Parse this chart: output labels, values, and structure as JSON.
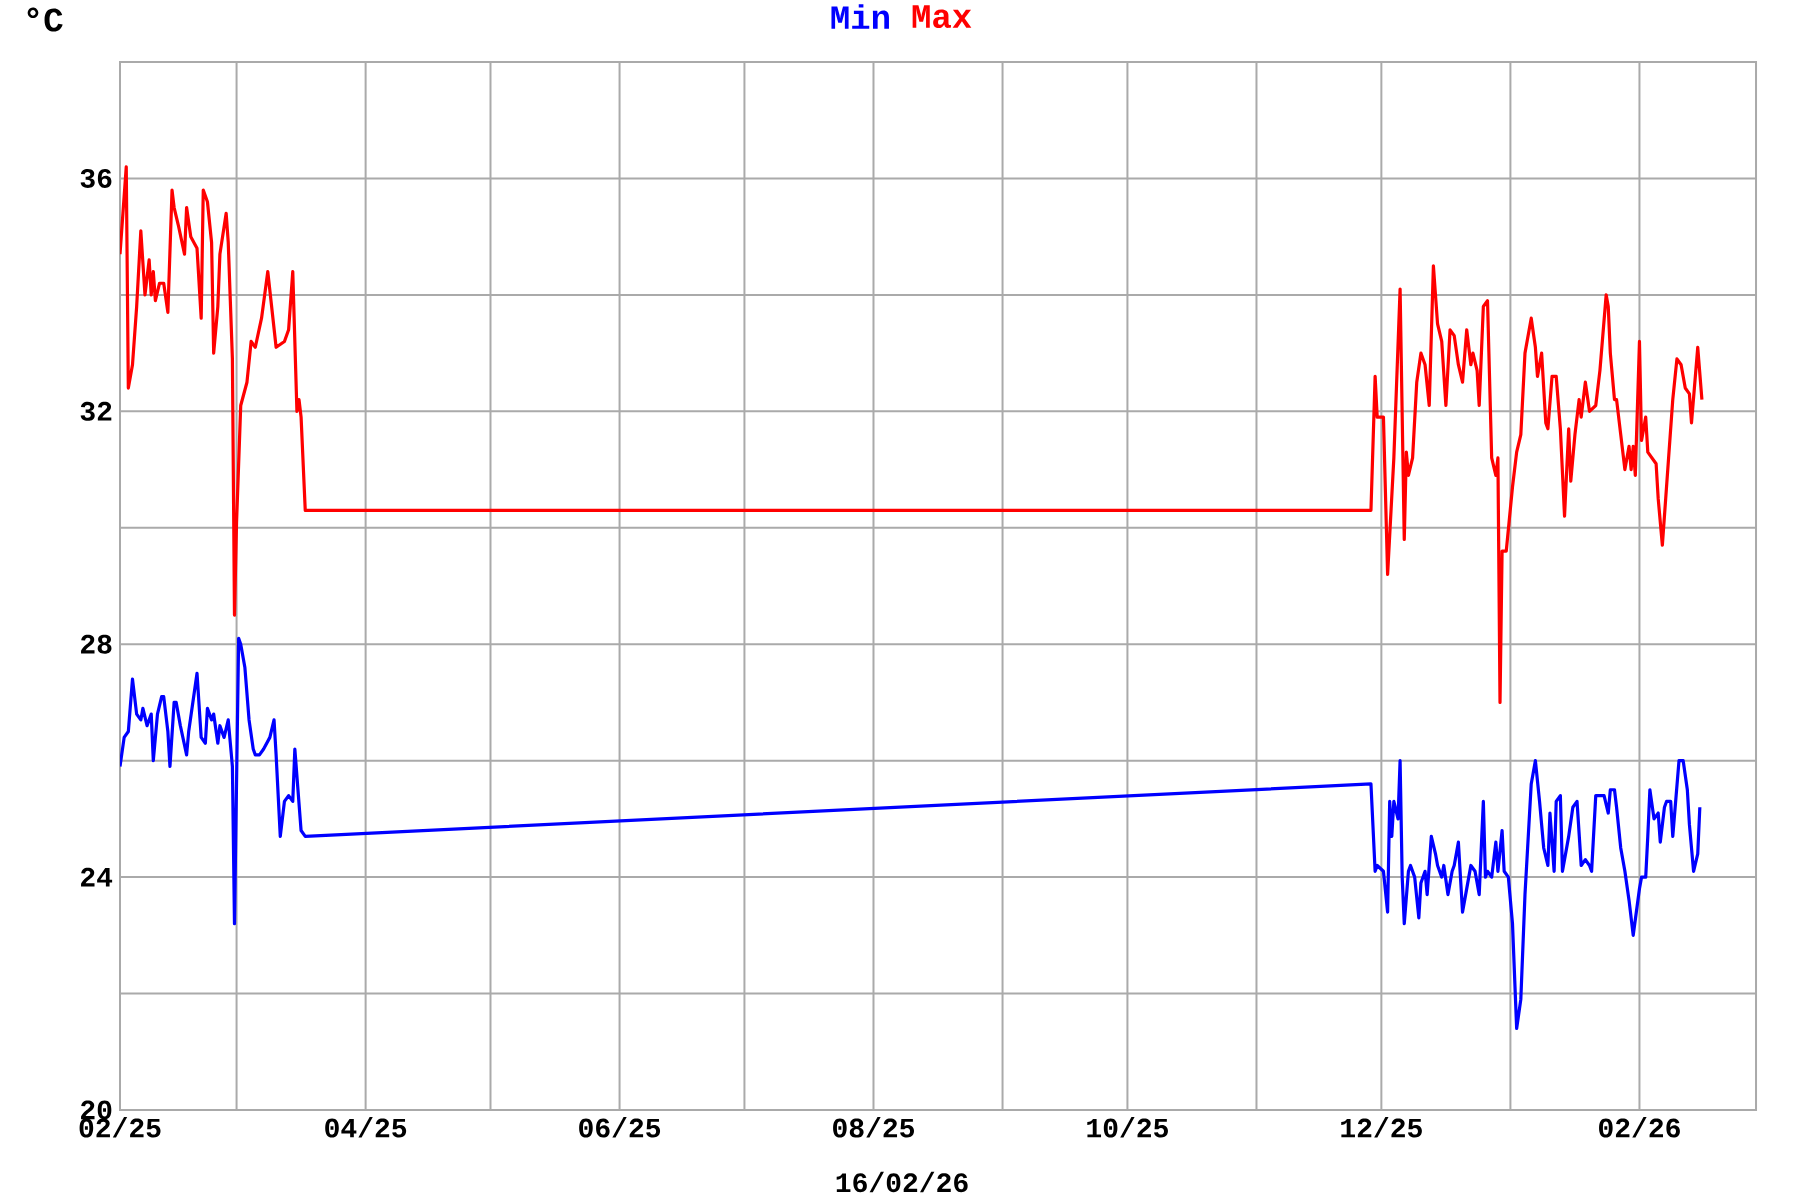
{
  "chart_data": {
    "type": "line",
    "xlabel": "16/02/26",
    "ylabel": "°C",
    "xlim": [
      "2025-02-01",
      "2026-03-01"
    ],
    "ylim": [
      20,
      38
    ],
    "xticks": [
      {
        "value": "2025-02-01",
        "label": "02/25"
      },
      {
        "value": "2025-03-01",
        "label": null
      },
      {
        "value": "2025-04-01",
        "label": "04/25"
      },
      {
        "value": "2025-05-01",
        "label": null
      },
      {
        "value": "2025-06-01",
        "label": "06/25"
      },
      {
        "value": "2025-07-01",
        "label": null
      },
      {
        "value": "2025-08-01",
        "label": "08/25"
      },
      {
        "value": "2025-09-01",
        "label": null
      },
      {
        "value": "2025-10-01",
        "label": "10/25"
      },
      {
        "value": "2025-11-01",
        "label": null
      },
      {
        "value": "2025-12-01",
        "label": "12/25"
      },
      {
        "value": "2026-01-01",
        "label": null
      },
      {
        "value": "2026-02-01",
        "label": "02/26"
      }
    ],
    "yticks": [
      20,
      {
        "value": 22,
        "label": null
      },
      24,
      {
        "value": 26,
        "label": null
      },
      28,
      {
        "value": 30,
        "label": null
      },
      32,
      {
        "value": 34,
        "label": null
      },
      36,
      {
        "value": 38,
        "label": null
      }
    ],
    "grid": true,
    "legend": "top",
    "series": [
      {
        "name": "Min",
        "color": "#0000ff",
        "x": [
          "2025-02-01T00:00",
          "2025-02-02T00:00",
          "2025-02-03T00:00",
          "2025-02-04T00:00",
          "2025-02-05T00:00",
          "2025-02-06T00:00",
          "2025-02-06T12:00",
          "2025-02-07T12:00",
          "2025-02-08T12:00",
          "2025-02-09T00:00",
          "2025-02-10T00:00",
          "2025-02-11T00:00",
          "2025-02-11T12:00",
          "2025-02-12T12:00",
          "2025-02-13T00:00",
          "2025-02-14T00:00",
          "2025-02-14T12:00",
          "2025-02-15T12:00",
          "2025-02-17T00:00",
          "2025-02-17T12:00",
          "2025-02-18T12:00",
          "2025-02-19T12:00",
          "2025-02-20T12:00",
          "2025-02-21T12:00",
          "2025-02-22T00:00",
          "2025-02-23T00:00",
          "2025-02-23T12:00",
          "2025-02-24T12:00",
          "2025-02-25T00:00",
          "2025-02-26T00:00",
          "2025-02-27T00:00",
          "2025-02-27T12:00",
          "2025-02-28T00:00",
          "2025-02-28T12:00",
          "2025-03-01T12:00",
          "2025-03-02T00:00",
          "2025-03-03T00:00",
          "2025-03-04T00:00",
          "2025-03-05T00:00",
          "2025-03-05T12:00",
          "2025-03-06T12:00",
          "2025-03-07T12:00",
          "2025-03-09T00:00",
          "2025-03-10T00:00",
          "2025-03-10T12:00",
          "2025-03-11T12:00",
          "2025-03-12T12:00",
          "2025-03-13T12:00",
          "2025-03-14T12:00",
          "2025-03-15T00:00",
          "2025-03-16T12:00",
          "2025-03-17T12:00",
          "2025-11-28T12:00",
          "2025-11-29T12:00",
          "2025-11-30T00:00",
          "2025-12-01T12:00",
          "2025-12-02T12:00",
          "2025-12-03T00:00",
          "2025-12-03T12:00",
          "2025-12-04T00:00",
          "2025-12-05T00:00",
          "2025-12-05T12:00",
          "2025-12-06T00:00",
          "2025-12-06T12:00",
          "2025-12-07T12:00",
          "2025-12-08T00:00",
          "2025-12-09T00:00",
          "2025-12-10T00:00",
          "2025-12-10T12:00",
          "2025-12-11T12:00",
          "2025-12-12T00:00",
          "2025-12-13T00:00",
          "2025-12-14T00:00",
          "2025-12-14T12:00",
          "2025-12-15T12:00",
          "2025-12-16T00:00",
          "2025-12-17T00:00",
          "2025-12-18T00:00",
          "2025-12-18T12:00",
          "2025-12-19T12:00",
          "2025-12-20T12:00",
          "2025-12-21T00:00",
          "2025-12-22T00:00",
          "2025-12-22T12:00",
          "2025-12-23T12:00",
          "2025-12-24T12:00",
          "2025-12-25T12:00",
          "2025-12-26T00:00",
          "2025-12-26T12:00",
          "2025-12-27T12:00",
          "2025-12-28T12:00",
          "2025-12-29T00:00",
          "2025-12-30T00:00",
          "2025-12-30T12:00",
          "2025-12-31T12:00",
          "2026-01-01T12:00",
          "2026-01-02T12:00",
          "2026-01-03T12:00",
          "2026-01-04T12:00",
          "2026-01-06T00:00",
          "2026-01-07T00:00",
          "2026-01-08T00:00",
          "2026-01-09T00:00",
          "2026-01-10T00:00",
          "2026-01-10T12:00",
          "2026-01-11T12:00",
          "2026-01-12T00:00",
          "2026-01-13T00:00",
          "2026-01-13T12:00",
          "2026-01-15T00:00",
          "2026-01-16T00:00",
          "2026-01-17T00:00",
          "2026-01-18T00:00",
          "2026-01-19T00:00",
          "2026-01-20T00:00",
          "2026-01-20T12:00",
          "2026-01-21T12:00",
          "2026-01-22T12:00",
          "2026-01-23T12:00",
          "2026-01-24T12:00",
          "2026-01-25T00:00",
          "2026-01-26T00:00",
          "2026-01-26T12:00",
          "2026-01-27T12:00",
          "2026-01-28T12:00",
          "2026-01-29T12:00",
          "2026-01-30T12:00",
          "2026-02-01T00:00",
          "2026-02-01T12:00",
          "2026-02-02T12:00",
          "2026-02-03T00:00",
          "2026-02-03T12:00",
          "2026-02-04T12:00",
          "2026-02-05T12:00",
          "2026-02-06T00:00",
          "2026-02-07T00:00",
          "2026-02-07T12:00",
          "2026-02-08T12:00",
          "2026-02-09T00:00",
          "2026-02-10T12:00",
          "2026-02-11T12:00",
          "2026-02-12T12:00",
          "2026-02-13T00:00",
          "2026-02-14T00:00",
          "2026-02-15T00:00",
          "2026-02-15T12:00"
        ],
        "values": [
          25.9,
          26.4,
          26.5,
          27.4,
          26.8,
          26.7,
          26.9,
          26.6,
          26.8,
          26.0,
          26.8,
          27.1,
          27.1,
          26.5,
          25.9,
          27.0,
          27.0,
          26.6,
          26.1,
          26.5,
          27.0,
          27.5,
          26.4,
          26.3,
          26.9,
          26.7,
          26.8,
          26.3,
          26.6,
          26.4,
          26.7,
          26.3,
          25.9,
          23.2,
          28.1,
          28.0,
          27.6,
          26.7,
          26.2,
          26.1,
          26.1,
          26.2,
          26.4,
          26.7,
          26.1,
          24.7,
          25.3,
          25.4,
          25.3,
          26.2,
          24.8,
          24.7,
          25.6,
          24.1,
          24.2,
          24.1,
          23.4,
          25.3,
          24.7,
          25.3,
          25.0,
          26.0,
          24.0,
          23.2,
          24.1,
          24.2,
          24.0,
          23.3,
          23.9,
          24.1,
          23.7,
          24.7,
          24.4,
          24.2,
          24.0,
          24.2,
          23.7,
          24.1,
          24.2,
          24.6,
          23.4,
          23.6,
          24.0,
          24.2,
          24.1,
          23.7,
          25.3,
          24.0,
          24.1,
          24.0,
          24.6,
          24.1,
          24.8,
          24.1,
          24.0,
          23.2,
          21.4,
          21.9,
          23.7,
          25.6,
          26.0,
          25.3,
          24.5,
          24.2,
          25.1,
          24.1,
          25.3,
          25.4,
          24.1,
          24.7,
          25.2,
          25.3,
          24.2,
          24.3,
          24.2,
          24.1,
          25.4,
          25.4,
          25.4,
          25.1,
          25.5,
          25.5,
          25.2,
          24.5,
          24.1,
          23.6,
          23.0,
          23.8,
          24.0,
          24.0,
          24.7,
          25.5,
          25.0,
          25.1,
          24.6,
          25.2,
          25.3,
          25.3,
          24.7,
          26.0,
          26.0,
          25.5,
          24.9,
          24.1,
          24.4,
          25.2
        ]
      },
      {
        "name": "Max",
        "color": "#ff0000",
        "x": [
          "2025-02-01T00:00",
          "2025-02-02T12:00",
          "2025-02-03T00:00",
          "2025-02-04T00:00",
          "2025-02-05T00:00",
          "2025-02-06T00:00",
          "2025-02-07T00:00",
          "2025-02-08T00:00",
          "2025-02-08T12:00",
          "2025-02-09T00:00",
          "2025-02-09T12:00",
          "2025-02-10T12:00",
          "2025-02-11T12:00",
          "2025-02-12T12:00",
          "2025-02-13T12:00",
          "2025-02-14T00:00",
          "2025-02-15T00:00",
          "2025-02-16T12:00",
          "2025-02-17T00:00",
          "2025-02-18T00:00",
          "2025-02-19T12:00",
          "2025-02-20T12:00",
          "2025-02-21T00:00",
          "2025-02-22T00:00",
          "2025-02-23T00:00",
          "2025-02-23T12:00",
          "2025-02-24T12:00",
          "2025-02-25T00:00",
          "2025-02-26T12:00",
          "2025-02-27T00:00",
          "2025-02-28T00:00",
          "2025-02-28T12:00",
          "2025-03-01T00:00",
          "2025-03-02T00:00",
          "2025-03-03T12:00",
          "2025-03-04T12:00",
          "2025-03-05T12:00",
          "2025-03-07T00:00",
          "2025-03-08T12:00",
          "2025-03-10T12:00",
          "2025-03-12T12:00",
          "2025-03-13T12:00",
          "2025-03-14T12:00",
          "2025-03-15T12:00",
          "2025-03-16T00:00",
          "2025-03-16T12:00",
          "2025-03-17T12:00",
          "2025-11-28T12:00",
          "2025-11-29T12:00",
          "2025-11-30T00:00",
          "2025-12-01T12:00",
          "2025-12-02T12:00",
          "2025-12-04T00:00",
          "2025-12-05T12:00",
          "2025-12-06T12:00",
          "2025-12-07T00:00",
          "2025-12-07T12:00",
          "2025-12-08T12:00",
          "2025-12-09T12:00",
          "2025-12-10T12:00",
          "2025-12-11T12:00",
          "2025-12-12T12:00",
          "2025-12-13T12:00",
          "2025-12-14T12:00",
          "2025-12-15T12:00",
          "2025-12-16T12:00",
          "2025-12-17T12:00",
          "2025-12-18T12:00",
          "2025-12-19T12:00",
          "2025-12-20T12:00",
          "2025-12-21T12:00",
          "2025-12-22T12:00",
          "2025-12-23T00:00",
          "2025-12-24T00:00",
          "2025-12-24T12:00",
          "2025-12-25T12:00",
          "2025-12-26T12:00",
          "2025-12-27T12:00",
          "2025-12-28T12:00",
          "2025-12-29T00:00",
          "2025-12-29T12:00",
          "2025-12-30T00:00",
          "2025-12-31T00:00",
          "2026-01-01T12:00",
          "2026-01-02T12:00",
          "2026-01-03T12:00",
          "2026-01-04T12:00",
          "2026-01-06T00:00",
          "2026-01-07T00:00",
          "2026-01-07T12:00",
          "2026-01-08T12:00",
          "2026-01-09T12:00",
          "2026-01-10T00:00",
          "2026-01-11T00:00",
          "2026-01-12T00:00",
          "2026-01-13T00:00",
          "2026-01-14T00:00",
          "2026-01-15T00:00",
          "2026-01-15T12:00",
          "2026-01-16T12:00",
          "2026-01-17T12:00",
          "2026-01-18T00:00",
          "2026-01-19T00:00",
          "2026-01-20T00:00",
          "2026-01-21T12:00",
          "2026-01-22T12:00",
          "2026-01-24T00:00",
          "2026-01-24T12:00",
          "2026-01-25T00:00",
          "2026-01-26T00:00",
          "2026-01-26T12:00",
          "2026-01-27T12:00",
          "2026-01-28T12:00",
          "2026-01-29T12:00",
          "2026-01-30T00:00",
          "2026-01-30T12:00",
          "2026-01-31T00:00",
          "2026-02-01T00:00",
          "2026-02-01T12:00",
          "2026-02-02T12:00",
          "2026-02-03T00:00",
          "2026-02-05T00:00",
          "2026-02-05T12:00",
          "2026-02-06T12:00",
          "2026-02-08T00:00",
          "2026-02-09T00:00",
          "2026-02-10T00:00",
          "2026-02-11T00:00",
          "2026-02-12T00:00",
          "2026-02-13T00:00",
          "2026-02-13T12:00",
          "2026-02-15T00:00",
          "2026-02-16T00:00"
        ],
        "values": [
          34.7,
          36.2,
          32.4,
          32.8,
          33.8,
          35.1,
          34.0,
          34.6,
          34.0,
          34.4,
          33.9,
          34.2,
          34.2,
          33.7,
          35.8,
          35.5,
          35.2,
          34.7,
          35.5,
          35.0,
          34.8,
          33.6,
          35.8,
          35.6,
          34.9,
          33.0,
          33.8,
          34.7,
          35.4,
          34.9,
          32.9,
          28.5,
          30.1,
          32.1,
          32.5,
          33.2,
          33.1,
          33.6,
          34.4,
          33.1,
          33.2,
          33.4,
          34.4,
          32.0,
          32.2,
          31.9,
          30.3,
          30.3,
          32.6,
          31.9,
          31.9,
          29.2,
          31.2,
          34.1,
          29.8,
          31.3,
          30.9,
          31.2,
          32.5,
          33.0,
          32.8,
          32.1,
          34.5,
          33.5,
          33.2,
          32.1,
          33.4,
          33.3,
          32.8,
          32.5,
          33.4,
          32.8,
          33.0,
          32.7,
          32.1,
          33.8,
          33.9,
          31.2,
          30.9,
          31.2,
          27.0,
          29.6,
          29.6,
          30.7,
          31.3,
          31.6,
          33.0,
          33.6,
          33.1,
          32.6,
          33.0,
          31.8,
          31.7,
          32.6,
          32.6,
          31.7,
          30.2,
          31.7,
          30.8,
          31.6,
          32.2,
          31.9,
          32.5,
          32.0,
          32.1,
          32.7,
          34.0,
          33.8,
          33.0,
          32.2,
          32.2,
          31.6,
          31.0,
          31.4,
          31.0,
          31.4,
          30.9,
          33.2,
          31.5,
          31.9,
          31.3,
          31.1,
          30.5,
          29.7,
          31.2,
          32.2,
          32.9,
          32.8,
          32.4,
          32.3,
          31.8,
          33.1,
          32.2
        ]
      }
    ]
  }
}
